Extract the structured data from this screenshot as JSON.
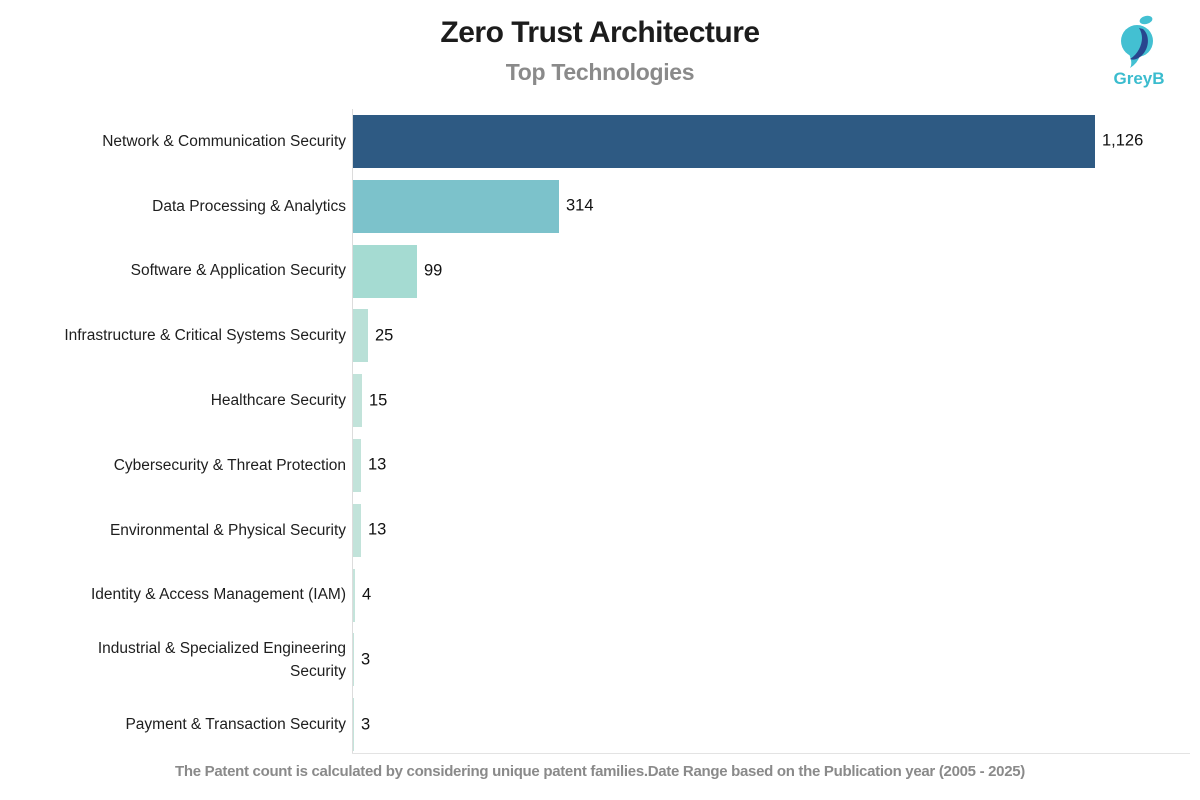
{
  "header": {
    "title": "Zero Trust Architecture",
    "subtitle": "Top Technologies"
  },
  "logo": {
    "text": "GreyB",
    "teal": "#43c0d2",
    "navy": "#28468e"
  },
  "chart_data": {
    "type": "bar",
    "orientation": "horizontal",
    "title": "Zero Trust Architecture",
    "subtitle": "Top Technologies",
    "xlabel": "",
    "ylabel": "",
    "xlim": [
      0,
      1126
    ],
    "grid": false,
    "value_labels_shown": true,
    "categories": [
      "Network & Communication Security",
      "Data Processing & Analytics",
      "Software & Application Security",
      "Infrastructure & Critical Systems Security",
      "Healthcare Security",
      "Cybersecurity & Threat Protection",
      "Environmental & Physical Security",
      "Identity & Access Management (IAM)",
      "Industrial & Specialized Engineering Security",
      "Payment & Transaction Security"
    ],
    "values": [
      1126,
      314,
      99,
      25,
      15,
      13,
      13,
      4,
      3,
      3
    ],
    "value_labels": [
      "1,126",
      "314",
      "99",
      "25",
      "15",
      "13",
      "13",
      "4",
      "3",
      "3"
    ],
    "bar_colors": [
      "#2e5a83",
      "#7cc2cb",
      "#a5dbd2",
      "#b9e0d7",
      "#c2e3da",
      "#c2e3da",
      "#c2e3da",
      "#c4e4db",
      "#c4e4db",
      "#c4e4db"
    ]
  },
  "footer": {
    "note": "The Patent count is calculated by considering unique patent families.Date Range based on the Publication year (2005 - 2025)"
  }
}
